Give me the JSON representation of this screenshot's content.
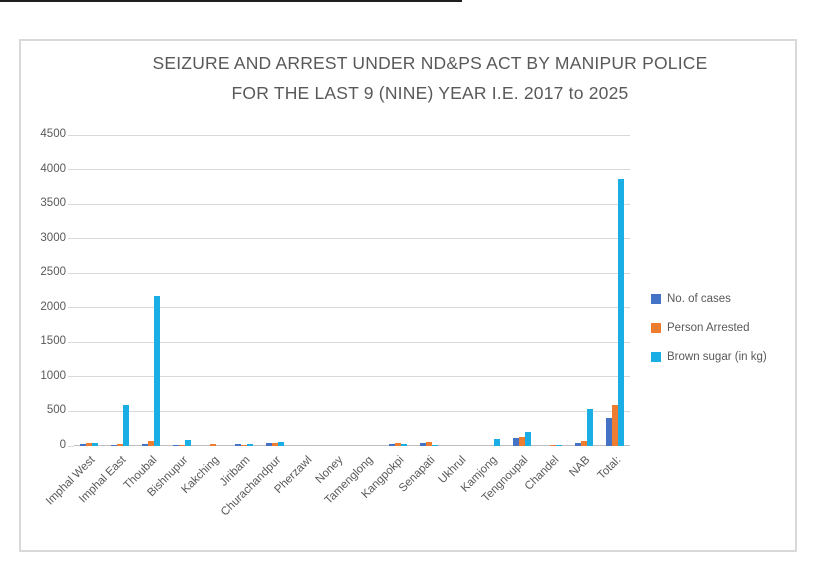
{
  "chart_data": {
    "type": "bar",
    "title": "SEIZURE AND ARREST UNDER ND&PS ACT BY MANIPUR POLICE FOR THE LAST 9 (NINE) YEAR I.E. 2017 to 2025",
    "title_lines": {
      "line1": "SEIZURE AND ARREST UNDER ND&PS ACT BY MANIPUR POLICE",
      "line2": "FOR THE LAST 9 (NINE) YEAR I.E. 2017 to 2025"
    },
    "categories": [
      "Imphal West",
      "Imphal East",
      "Thoubal",
      "Bishnupur",
      "Kakching",
      "Jiribam",
      "Churachandpur",
      "Pherzawl",
      "Noney",
      "Tamenglong",
      "Kangpokpi",
      "Senapati",
      "Ukhrul",
      "Kamjong",
      "Tengnoupal",
      "Chandel",
      "NAB",
      "Total:"
    ],
    "series": [
      {
        "name": "No. of cases",
        "color": "#4472C4",
        "values": [
          25,
          20,
          35,
          10,
          0,
          25,
          40,
          0,
          0,
          0,
          30,
          40,
          0,
          0,
          115,
          0,
          50,
          400
        ]
      },
      {
        "name": "Person Arrested",
        "color": "#ED7D31",
        "values": [
          40,
          30,
          75,
          15,
          25,
          15,
          50,
          0,
          0,
          0,
          45,
          65,
          0,
          0,
          130,
          20,
          75,
          600
        ]
      },
      {
        "name": "Brown sugar (in kg)",
        "color": "#1BAEE4",
        "values": [
          40,
          600,
          2170,
          85,
          0,
          30,
          55,
          0,
          0,
          0,
          25,
          20,
          0,
          100,
          200,
          15,
          530,
          3860
        ]
      }
    ],
    "ylim": [
      0,
      4500
    ],
    "y_ticks": [
      0,
      500,
      1000,
      1500,
      2000,
      2500,
      3000,
      3500,
      4000,
      4500
    ],
    "grid": true,
    "legend_position": "right",
    "style": {
      "text_color": "#595959",
      "grid_color": "#D9D9D9",
      "axis_color": "#BFBFBF",
      "frame_color": "#D9D9D9"
    }
  }
}
